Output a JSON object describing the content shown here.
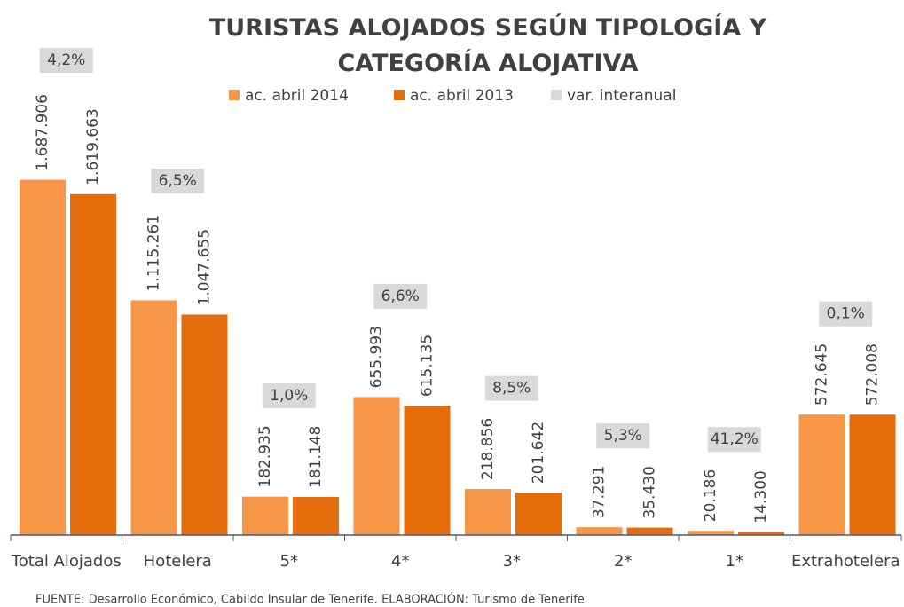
{
  "chart_data": {
    "type": "bar",
    "title": "TURISTAS ALOJADOS SEGÚN TIPOLOGÍA Y CATEGORÍA ALOJATIVA",
    "categories": [
      "Total Alojados",
      "Hotelera",
      "5*",
      "4*",
      "3*",
      "2*",
      "1*",
      "Extrahotelera"
    ],
    "series": [
      {
        "name": "ac. abril 2014",
        "color": "#f79646",
        "values": [
          1687906,
          1115261,
          182935,
          655993,
          218856,
          37291,
          20186,
          572645
        ],
        "value_labels": [
          "1.687.906",
          "1.115.261",
          "182.935",
          "655.993",
          "218.856",
          "37.291",
          "20.186",
          "572.645"
        ]
      },
      {
        "name": "ac. abril 2013",
        "color": "#e46c0a",
        "values": [
          1619663,
          1047655,
          181148,
          615135,
          201642,
          35430,
          14300,
          572008
        ],
        "value_labels": [
          "1.619.663",
          "1.047.655",
          "181.148",
          "615.135",
          "201.642",
          "35.430",
          "14.300",
          "572.008"
        ]
      },
      {
        "name": "var. interanual",
        "color": "#d9d9d9",
        "values": [
          4.2,
          6.5,
          1.0,
          6.6,
          8.5,
          5.3,
          41.2,
          0.1
        ],
        "value_labels": [
          "4,2%",
          "6,5%",
          "1,0%",
          "6,6%",
          "8,5%",
          "5,3%",
          "41,2%",
          "0,1%"
        ]
      }
    ],
    "ylim": [
      0,
      1800000
    ],
    "source": "FUENTE: Desarrollo Económico, Cabildo Insular de Tenerife. ELABORACIÓN: Turismo de Tenerife"
  }
}
